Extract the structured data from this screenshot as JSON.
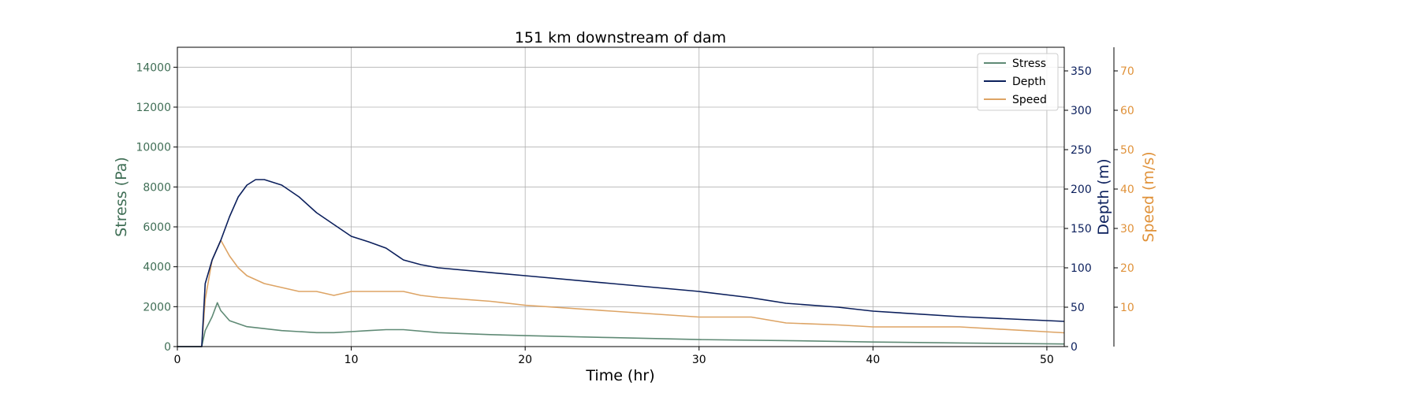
{
  "chart_data": {
    "type": "line",
    "title": "151 km downstream of dam",
    "xlabel": "Time (hr)",
    "xlim": [
      0,
      51
    ],
    "xticks": [
      0,
      10,
      20,
      30,
      40,
      50
    ],
    "grid": true,
    "legend_position": "top-right",
    "axes": {
      "stress": {
        "label": "Stress (Pa)",
        "ylim": [
          0,
          15000
        ],
        "ticks": [
          0,
          2000,
          4000,
          6000,
          8000,
          10000,
          12000,
          14000
        ],
        "color": "#3f6e55"
      },
      "depth": {
        "label": "Depth (m)",
        "ylim": [
          0,
          380
        ],
        "ticks": [
          0,
          50,
          100,
          150,
          200,
          250,
          300,
          350
        ],
        "color": "#0b1f5c"
      },
      "speed": {
        "label": "Speed (m/s)",
        "ylim": [
          0,
          76
        ],
        "ticks": [
          10,
          20,
          30,
          40,
          50,
          60,
          70
        ],
        "color": "#e0923a"
      }
    },
    "series": [
      {
        "name": "Stress",
        "axis": "stress",
        "color": "#5f8a75",
        "x": [
          0,
          1.4,
          1.6,
          2.0,
          2.3,
          2.5,
          3.0,
          4.0,
          5.0,
          6.0,
          7.0,
          8.0,
          9.0,
          10.0,
          11.0,
          12.0,
          13.0,
          15.0,
          18.0,
          20.0,
          25.0,
          30.0,
          35.0,
          40.0,
          45.0,
          51.0
        ],
        "y": [
          0,
          0,
          800,
          1500,
          2200,
          1800,
          1300,
          1000,
          900,
          800,
          750,
          700,
          700,
          750,
          800,
          850,
          850,
          700,
          600,
          550,
          450,
          350,
          300,
          230,
          180,
          130
        ]
      },
      {
        "name": "Depth",
        "axis": "depth",
        "color": "#0b1f5c",
        "x": [
          0,
          1.4,
          1.6,
          2.0,
          2.5,
          3.0,
          3.5,
          4.0,
          4.5,
          5.0,
          6.0,
          7.0,
          8.0,
          9.0,
          10.0,
          11.0,
          12.0,
          13.0,
          14.0,
          15.0,
          20.0,
          25.0,
          30.0,
          33.0,
          35.0,
          38.0,
          40.0,
          45.0,
          51.0
        ],
        "y": [
          0,
          0,
          80,
          110,
          135,
          165,
          190,
          205,
          212,
          212,
          205,
          190,
          170,
          155,
          140,
          133,
          125,
          110,
          104,
          100,
          90,
          80,
          70,
          62,
          55,
          50,
          45,
          38,
          32
        ]
      },
      {
        "name": "Speed",
        "axis": "speed",
        "color": "#dda465",
        "x": [
          0,
          1.4,
          1.6,
          2.0,
          2.5,
          3.0,
          3.5,
          4.0,
          5.0,
          6.0,
          7.0,
          8.0,
          9.0,
          10.0,
          11.0,
          12.0,
          13.0,
          14.0,
          15.0,
          18.0,
          20.0,
          25.0,
          30.0,
          33.0,
          35.0,
          38.0,
          40.0,
          45.0,
          51.0
        ],
        "y": [
          0,
          0,
          12,
          22,
          27,
          23,
          20,
          18,
          16,
          15,
          14,
          14,
          13,
          14,
          14,
          14,
          14,
          13,
          12.5,
          11.5,
          10.5,
          9,
          7.5,
          7.5,
          6,
          5.5,
          5,
          5,
          3.5
        ]
      }
    ]
  }
}
